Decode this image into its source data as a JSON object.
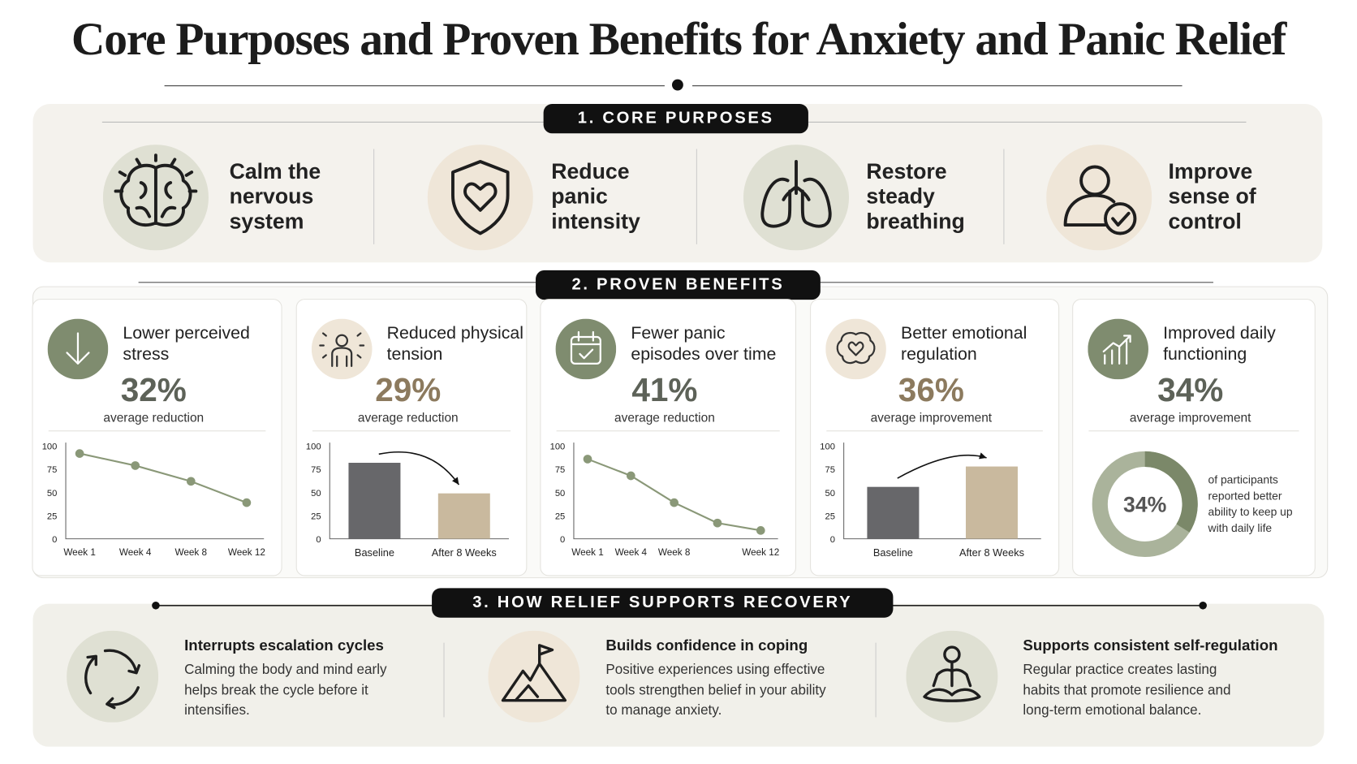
{
  "title": "Core Purposes and Proven Benefits for Anxiety and Panic Relief",
  "core_purposes": {
    "heading": "1. CORE PURPOSES",
    "items": [
      "Calm the nervous system",
      "Reduce panic intensity",
      "Restore steady breathing",
      "Improve sense of control"
    ]
  },
  "benefits": {
    "heading": "2. PROVEN BENEFITS",
    "cards": [
      {
        "title": "Lower perceived stress",
        "stat": "32%",
        "stat_label": "average reduction",
        "chart": {
          "type": "line",
          "categories": [
            "Week 1",
            "Week 4",
            "Week 8",
            "Week 12"
          ],
          "values": [
            92,
            79,
            62,
            39
          ],
          "color": "#8a9878",
          "ylim": [
            0,
            100
          ],
          "yticks": [
            0,
            25,
            50,
            75,
            100
          ]
        }
      },
      {
        "title": "Reduced physical tension",
        "stat": "29%",
        "stat_label": "average reduction",
        "chart": {
          "type": "bar",
          "categories": [
            "Baseline",
            "After 8 Weeks"
          ],
          "values": [
            82,
            49
          ],
          "colors": [
            "#67676a",
            "#c9b99e"
          ],
          "ylim": [
            0,
            100
          ],
          "yticks": [
            0,
            25,
            50,
            75,
            100
          ]
        }
      },
      {
        "title": "Fewer panic episodes over time",
        "stat": "41%",
        "stat_label": "average reduction",
        "chart": {
          "type": "line",
          "categories": [
            "Week 1",
            "Week 4",
            "Week 8",
            null,
            "Week 12"
          ],
          "values": [
            86,
            68,
            39,
            17,
            9
          ],
          "color": "#8a9878",
          "ylim": [
            0,
            100
          ],
          "yticks": [
            0,
            25,
            50,
            75,
            100
          ]
        }
      },
      {
        "title": "Better emotional regulation",
        "stat": "36%",
        "stat_label": "average improvement",
        "chart": {
          "type": "bar",
          "categories": [
            "Baseline",
            "After 8 Weeks"
          ],
          "values": [
            56,
            78
          ],
          "colors": [
            "#67676a",
            "#c9b99e"
          ],
          "ylim": [
            0,
            100
          ],
          "yticks": [
            0,
            25,
            50,
            75,
            100
          ]
        }
      },
      {
        "title": "Improved daily functioning",
        "stat": "34%",
        "stat_label": "average improvement",
        "chart": {
          "type": "donut",
          "values": [
            34
          ],
          "value_labels": [
            "34%"
          ],
          "colors": [
            "#7b8869",
            "#aab39b"
          ],
          "caption": "of participants reported better ability to keep up with daily life"
        }
      }
    ]
  },
  "recovery": {
    "heading": "3. HOW RELIEF SUPPORTS RECOVERY",
    "items": [
      {
        "title": "Interrupts escalation cycles",
        "text": "Calming the body and mind early helps break the cycle before it intensifies."
      },
      {
        "title": "Builds confidence in coping",
        "text": "Positive experiences using effective tools strengthen belief in your ability to manage anxiety."
      },
      {
        "title": "Supports consistent self-regulation",
        "text": "Regular practice creates lasting habits that promote resilience and long-term emotional balance."
      }
    ]
  }
}
